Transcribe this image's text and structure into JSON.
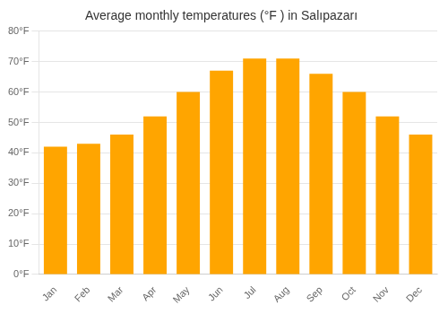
{
  "chart_data": {
    "type": "bar",
    "title": "Average monthly temperatures (°F ) in Salıpazarı",
    "categories": [
      "Jan",
      "Feb",
      "Mar",
      "Apr",
      "May",
      "Jun",
      "Jul",
      "Aug",
      "Sep",
      "Oct",
      "Nov",
      "Dec"
    ],
    "values": [
      42,
      43,
      46,
      52,
      60,
      67,
      71,
      71,
      66,
      60,
      52,
      46
    ],
    "color": "#FFA500",
    "ylim": [
      0,
      80
    ],
    "yticks": [
      {
        "value": 0,
        "label": "0°F"
      },
      {
        "value": 10,
        "label": "10°F"
      },
      {
        "value": 20,
        "label": "20°F"
      },
      {
        "value": 30,
        "label": "30°F"
      },
      {
        "value": 40,
        "label": "40°F"
      },
      {
        "value": 50,
        "label": "50°F"
      },
      {
        "value": 60,
        "label": "60°F"
      },
      {
        "value": 70,
        "label": "70°F"
      },
      {
        "value": 80,
        "label": "80°F"
      }
    ],
    "grid": true
  }
}
